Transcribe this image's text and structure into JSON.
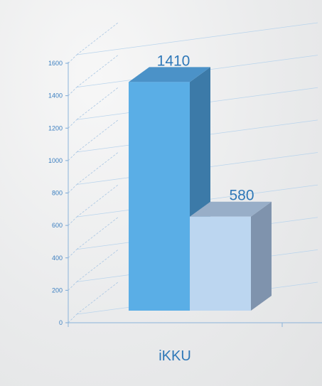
{
  "chart_data": {
    "type": "bar",
    "style": "3d",
    "categories": [
      "iKKU"
    ],
    "series": [
      {
        "values": [
          1410
        ],
        "color": "#5aaee6"
      },
      {
        "values": [
          580
        ],
        "color": "#bcd6f0"
      }
    ],
    "yticks": [
      "0",
      "200",
      "400",
      "600",
      "800",
      "1000",
      "1200",
      "1400",
      "1600"
    ],
    "ylim": [
      0,
      1600
    ],
    "grid": true,
    "legend": "none",
    "data_labels": [
      "1410",
      "580"
    ],
    "title": "",
    "xlabel": "",
    "ylabel": ""
  }
}
